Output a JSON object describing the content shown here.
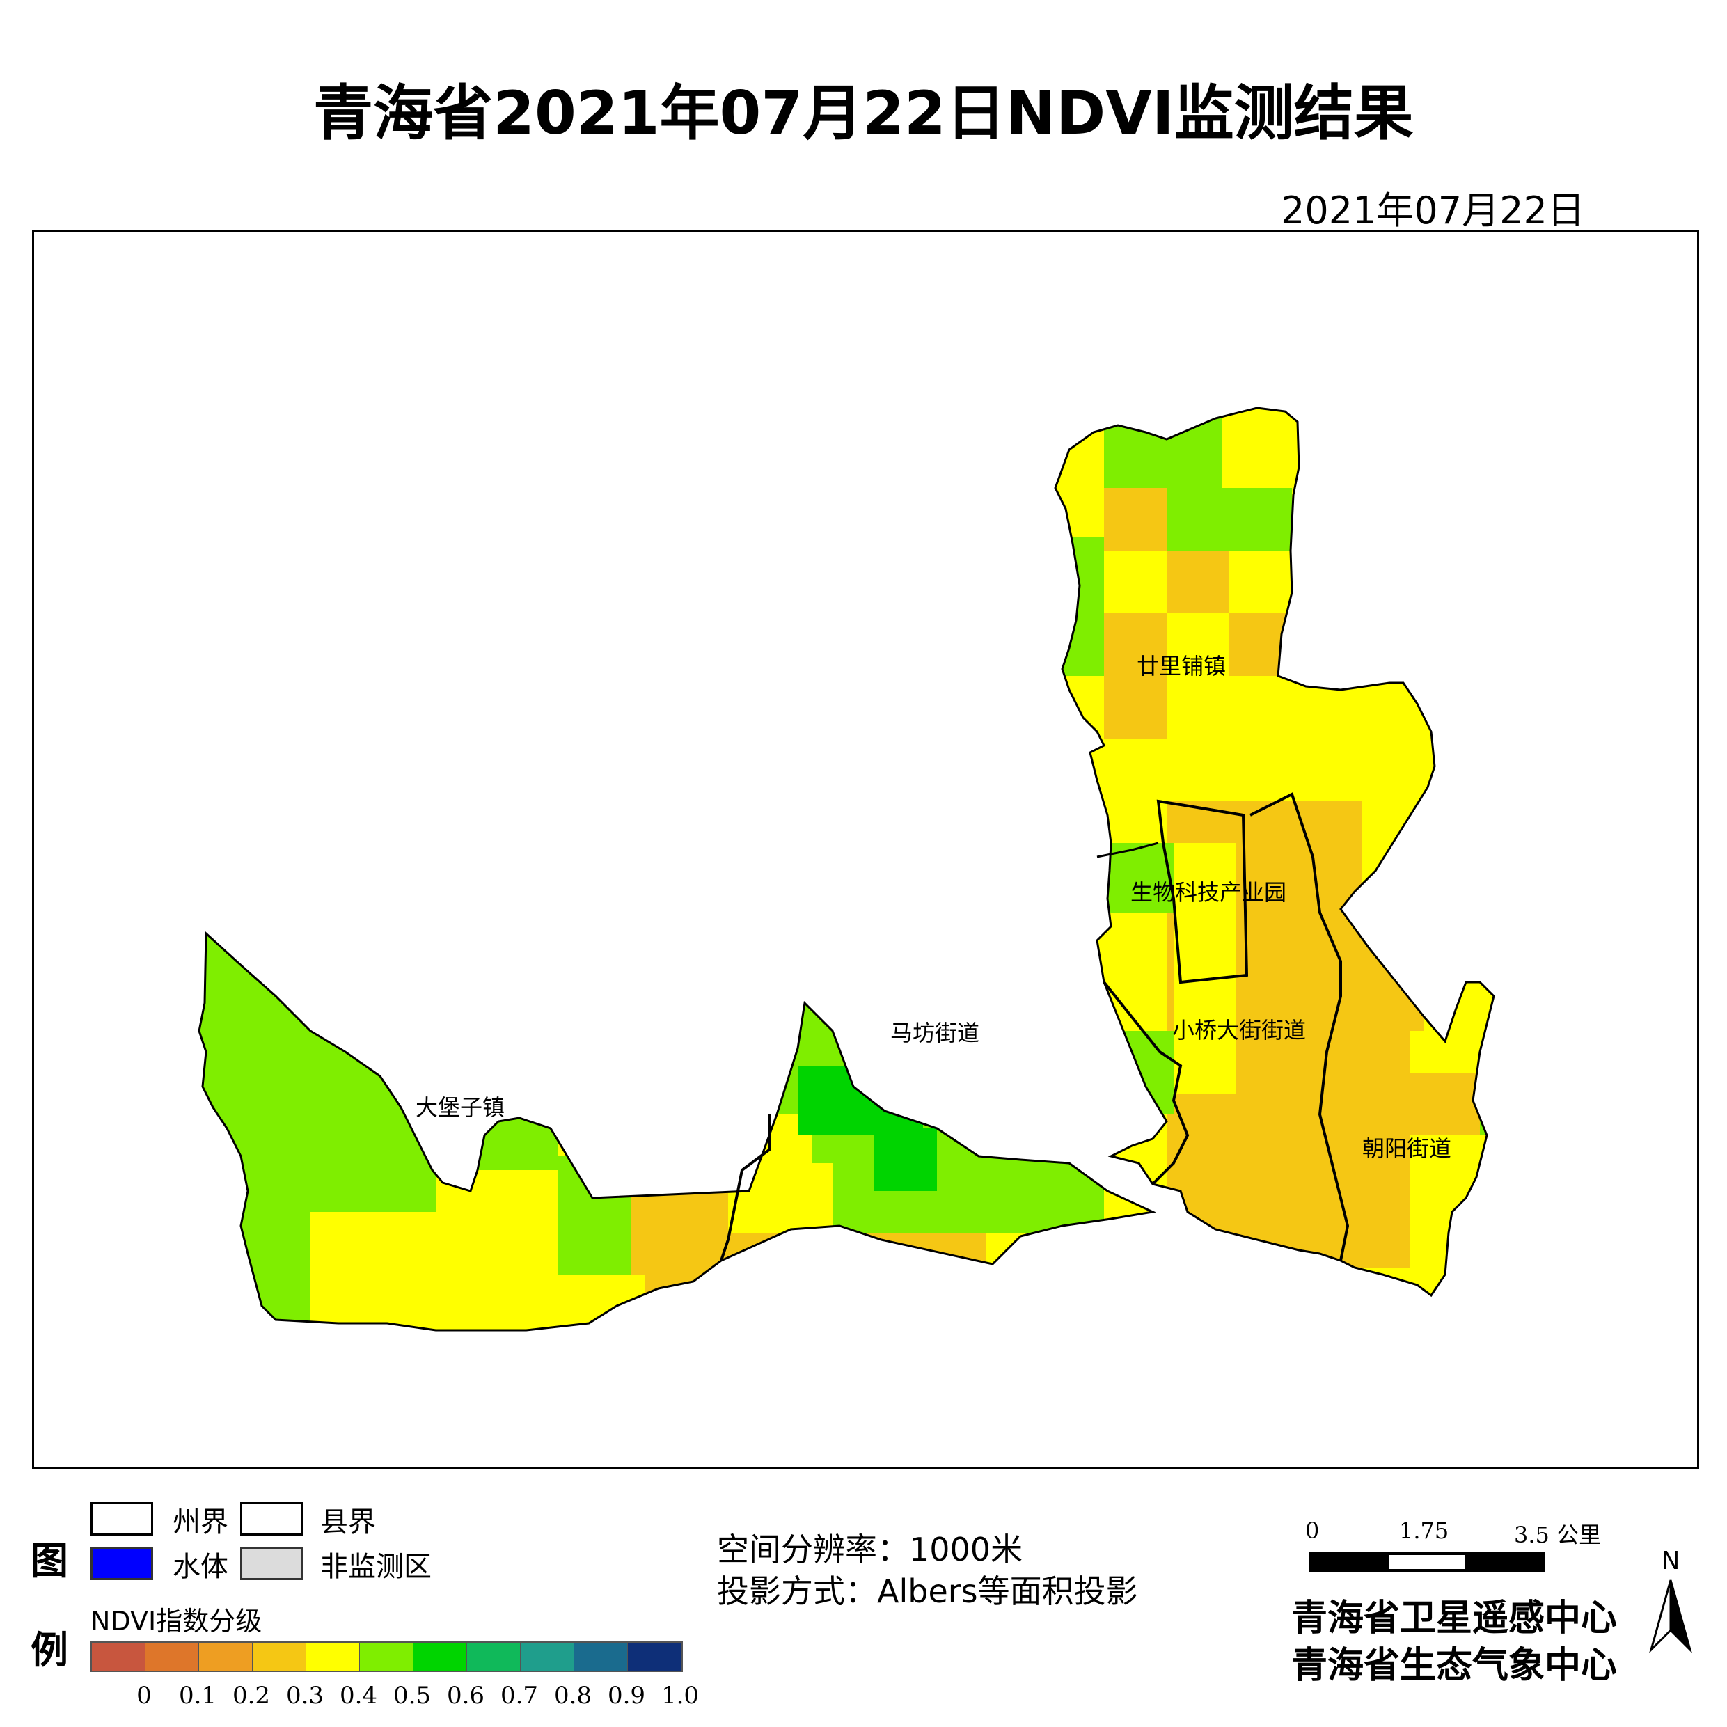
{
  "title": "青海省2021年07月22日NDVI监测结果",
  "date": "2021年07月22日",
  "map": {
    "regions": [
      {
        "name": "大堡子镇"
      },
      {
        "name": "马坊街道"
      },
      {
        "name": "廿里铺镇"
      },
      {
        "name": "生物科技产业园"
      },
      {
        "name": "小桥大街街道"
      },
      {
        "name": "朝阳街道"
      }
    ]
  },
  "legend": {
    "title_chars": [
      "图",
      "例"
    ],
    "items": [
      {
        "label": "州界",
        "fill": "#ffffff",
        "border": "#000000"
      },
      {
        "label": "县界",
        "fill": "#ffffff",
        "border": "#000000"
      },
      {
        "label": "水体",
        "fill": "#0000ff",
        "border": "#333333"
      },
      {
        "label": "非监测区",
        "fill": "#dcdcdc",
        "border": "#333333"
      }
    ],
    "ndvi_title": "NDVI指数分级",
    "ramp_colors": [
      "#c8563e",
      "#de762a",
      "#ee9e22",
      "#f5c714",
      "#ffff00",
      "#7fee00",
      "#00d400",
      "#10b95a",
      "#1f9e8c",
      "#1a6b8e",
      "#0e2f78"
    ],
    "tick_labels": [
      "0",
      "0.1",
      "0.2",
      "0.3",
      "0.4",
      "0.5",
      "0.6",
      "0.7",
      "0.8",
      "0.9",
      "1.0"
    ]
  },
  "info": {
    "resolution": "空间分辨率：1000米",
    "projection": "投影方式：Albers等面积投影"
  },
  "scale": {
    "labels": [
      "0",
      "1.75",
      "3.5 公里"
    ]
  },
  "north_label": "N",
  "orgs": [
    "青海省卫星遥感中心",
    "青海省生态气象中心"
  ],
  "class_colors": {
    "c02": "#f5c714",
    "c03": "#ffff00",
    "c04": "#7fee00",
    "c05": "#00d400"
  }
}
